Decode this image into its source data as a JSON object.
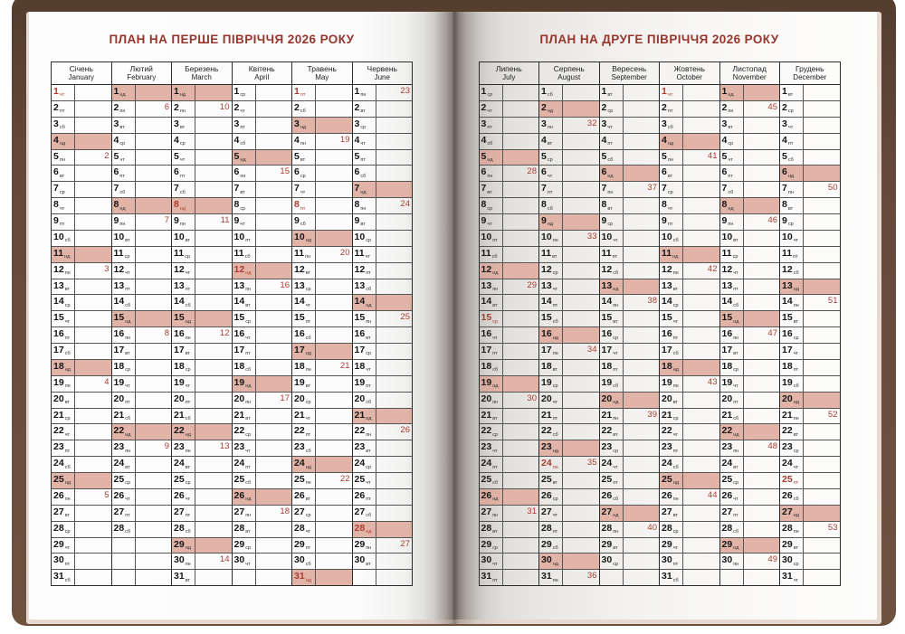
{
  "book": {
    "year": "2026",
    "cover_color": "#66493a",
    "page_edge_color": "#e7d9d0",
    "accent_red": "#aa3c31",
    "title_red": "#96362e",
    "sunday_pink": "#e2b4a8"
  },
  "weekday_labels": [
    "пн",
    "вт",
    "ср",
    "чт",
    "пт",
    "сб",
    "нд"
  ],
  "pages": [
    {
      "title": "ПЛАН НА ПЕРШЕ ПІВРІЧЧЯ 2026 РОКУ",
      "months": [
        {
          "uk": "Січень",
          "en": "January",
          "days": 31,
          "start": 3,
          "holidays": [
            1
          ],
          "weeks": {
            "5": 2,
            "12": 3,
            "19": 4,
            "26": 5
          }
        },
        {
          "uk": "Лютий",
          "en": "February",
          "days": 28,
          "start": 6,
          "holidays": [],
          "weeks": {
            "2": 6,
            "9": 7,
            "16": 8,
            "23": 9
          }
        },
        {
          "uk": "Березень",
          "en": "March",
          "days": 31,
          "start": 6,
          "holidays": [
            8
          ],
          "weeks": {
            "2": 10,
            "9": 11,
            "16": 12,
            "23": 13,
            "30": 14
          }
        },
        {
          "uk": "Квітень",
          "en": "April",
          "days": 30,
          "start": 2,
          "holidays": [
            12
          ],
          "weeks": {
            "6": 15,
            "13": 16,
            "20": 17,
            "27": 18
          }
        },
        {
          "uk": "Травень",
          "en": "May",
          "days": 31,
          "start": 4,
          "holidays": [
            1,
            8,
            31
          ],
          "weeks": {
            "4": 19,
            "11": 20,
            "18": 21,
            "25": 22
          }
        },
        {
          "uk": "Червень",
          "en": "June",
          "days": 30,
          "start": 0,
          "holidays": [
            28
          ],
          "weeks": {
            "1": 23,
            "8": 24,
            "15": 25,
            "22": 26,
            "29": 27
          }
        }
      ]
    },
    {
      "title": "ПЛАН НА ДРУГЕ ПІВРІЧЧЯ 2026 РОКУ",
      "months": [
        {
          "uk": "Липень",
          "en": "July",
          "days": 31,
          "start": 2,
          "holidays": [
            15
          ],
          "weeks": {
            "6": 28,
            "13": 29,
            "20": 30,
            "27": 31
          }
        },
        {
          "uk": "Серпень",
          "en": "August",
          "days": 31,
          "start": 5,
          "holidays": [
            24
          ],
          "weeks": {
            "3": 32,
            "10": 33,
            "17": 34,
            "24": 35,
            "31": 36
          }
        },
        {
          "uk": "Вересень",
          "en": "September",
          "days": 30,
          "start": 1,
          "holidays": [],
          "weeks": {
            "7": 37,
            "14": 38,
            "21": 39,
            "28": 40
          }
        },
        {
          "uk": "Жовтень",
          "en": "October",
          "days": 31,
          "start": 3,
          "holidays": [
            1
          ],
          "weeks": {
            "5": 41,
            "12": 42,
            "19": 43,
            "26": 44
          }
        },
        {
          "uk": "Листопад",
          "en": "November",
          "days": 30,
          "start": 6,
          "holidays": [],
          "weeks": {
            "2": 45,
            "9": 46,
            "16": 47,
            "23": 48,
            "30": 49
          }
        },
        {
          "uk": "Грудень",
          "en": "December",
          "days": 31,
          "start": 1,
          "holidays": [
            25
          ],
          "weeks": {
            "7": 50,
            "14": 51,
            "21": 52,
            "28": 53
          }
        }
      ]
    }
  ]
}
